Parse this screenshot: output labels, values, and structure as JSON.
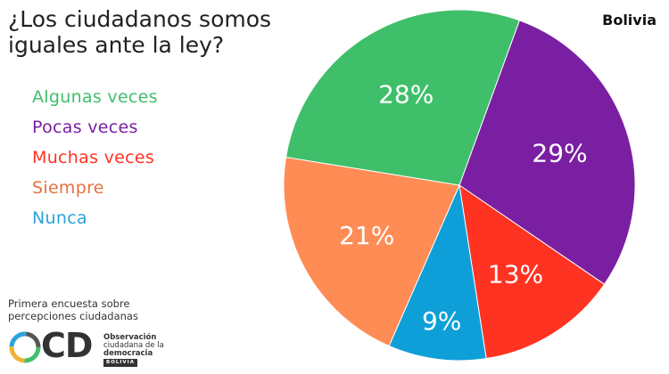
{
  "title": "¿Los ciudadanos somos iguales ante la ley?",
  "country": "Bolivia",
  "chart_data": {
    "type": "pie",
    "title": "¿Los ciudadanos somos iguales ante la ley?",
    "legend_position": "left",
    "slices": [
      {
        "name": "Pocas veces",
        "value": 29,
        "label": "29%",
        "color": "#7B1FA2"
      },
      {
        "name": "Muchas veces",
        "value": 13,
        "label": "13%",
        "color": "#FF3322"
      },
      {
        "name": "Nunca",
        "value": 9,
        "label": "9%",
        "color": "#0E9FD8"
      },
      {
        "name": "Siempre",
        "value": 21,
        "label": "21%",
        "color": "#FF8C55"
      },
      {
        "name": "Algunas veces",
        "value": 28,
        "label": "28%",
        "color": "#3FBF6A"
      }
    ]
  },
  "legend": [
    {
      "label": "Algunas veces",
      "color": "#3FBF6A"
    },
    {
      "label": "Pocas veces",
      "color": "#7B1FA2"
    },
    {
      "label": "Muchas veces",
      "color": "#FF3322"
    },
    {
      "label": "Siempre",
      "color": "#E8703E"
    },
    {
      "label": "Nunca",
      "color": "#2BA3D9"
    }
  ],
  "footer": {
    "note": "Primera encuesta sobre percepciones ciudadanas",
    "logo": {
      "letters": "CD",
      "line1": "Observación",
      "line2": "ciudadana de la",
      "line3": "democracia",
      "badge": "BOLIVIA"
    }
  }
}
